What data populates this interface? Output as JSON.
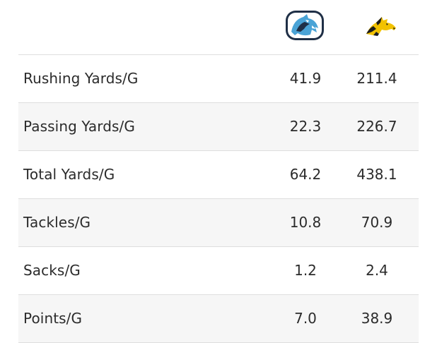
{
  "teams": {
    "home": {
      "logo_icon": "wolf-head-logo-icon",
      "colors": [
        "#1f2f46",
        "#4aa3d6",
        "#ffffff"
      ]
    },
    "away": {
      "logo_icon": "mustang-head-logo-icon",
      "colors": [
        "#f2c200",
        "#1c1c1c"
      ]
    }
  },
  "stats": [
    {
      "label": "Rushing Yards/G",
      "home": "41.9",
      "away": "211.4"
    },
    {
      "label": "Passing Yards/G",
      "home": "22.3",
      "away": "226.7"
    },
    {
      "label": "Total Yards/G",
      "home": "64.2",
      "away": "438.1"
    },
    {
      "label": "Tackles/G",
      "home": "10.8",
      "away": "70.9"
    },
    {
      "label": "Sacks/G",
      "home": "1.2",
      "away": "2.4"
    },
    {
      "label": "Points/G",
      "home": "7.0",
      "away": "38.9"
    }
  ]
}
